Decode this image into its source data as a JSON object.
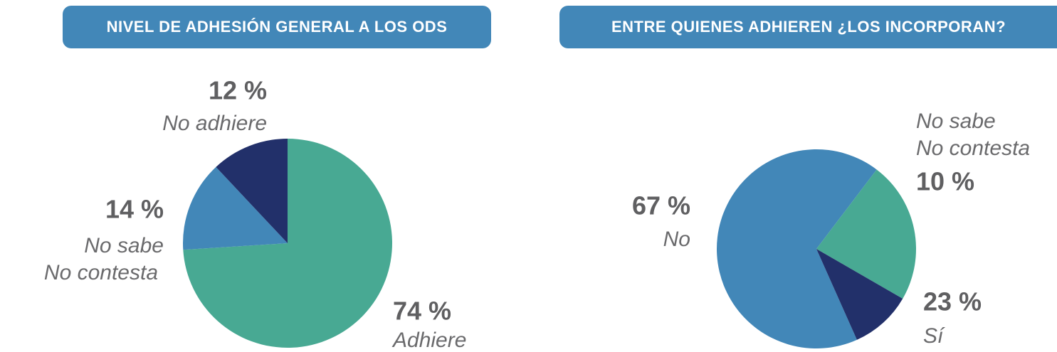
{
  "chart_data": [
    {
      "type": "pie",
      "title": "NIVEL DE ADHESIÓN GENERAL A LOS ODS",
      "categories": [
        "Adhiere",
        "No sabe\nNo contesta",
        "No adhiere"
      ],
      "values": [
        74,
        14,
        12
      ],
      "value_labels": [
        "74 %",
        "14 %",
        "12 %"
      ],
      "colors": [
        "#48a993",
        "#4287b8",
        "#22306a"
      ]
    },
    {
      "type": "pie",
      "title": "ENTRE QUIENES ADHIEREN ¿LOS INCORPORAN?",
      "categories": [
        "No",
        "Sí",
        "No sabe\nNo contesta"
      ],
      "values": [
        67,
        23,
        10
      ],
      "value_labels": [
        "67 %",
        "23 %",
        "10 %"
      ],
      "colors": [
        "#4287b8",
        "#48a993",
        "#22306a"
      ]
    }
  ]
}
